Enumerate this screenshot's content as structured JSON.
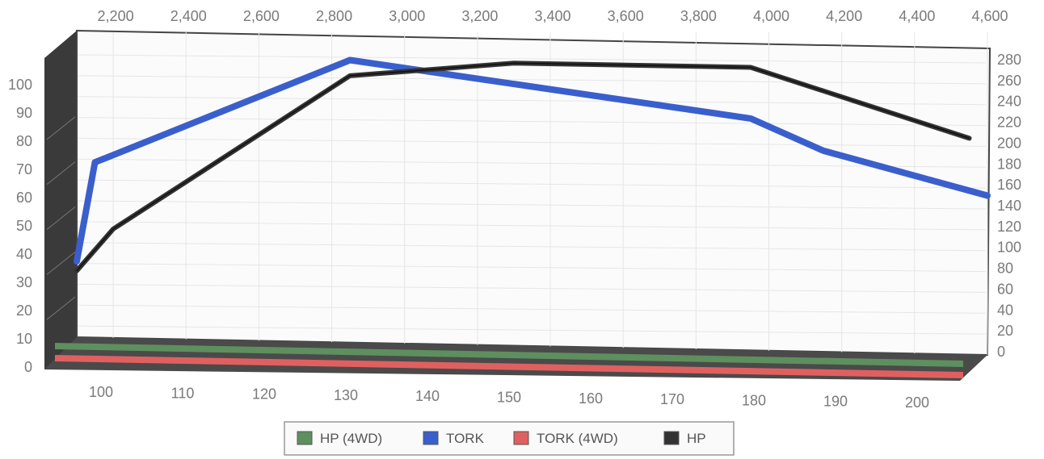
{
  "chart_data": {
    "type": "line",
    "title": "",
    "xlabel": "",
    "ylabel": "",
    "grid": true,
    "legend_position": "bottom-center",
    "top_axis": {
      "ticks": [
        2200,
        2400,
        2600,
        2800,
        3000,
        3200,
        3400,
        3600,
        3800,
        4000,
        4200,
        4400,
        4600
      ],
      "labels": [
        "2,200",
        "2,400",
        "2,600",
        "2,800",
        "3,000",
        "3,200",
        "3,400",
        "3,600",
        "3,800",
        "4,000",
        "4,200",
        "4,400",
        "4,600"
      ]
    },
    "bottom_axis": {
      "range": [
        95,
        205
      ],
      "ticks": [
        100,
        110,
        120,
        130,
        140,
        150,
        160,
        170,
        180,
        190,
        200
      ],
      "labels": [
        "100",
        "110",
        "120",
        "130",
        "140",
        "150",
        "160",
        "170",
        "180",
        "190",
        "200"
      ]
    },
    "left_axis": {
      "range": [
        0,
        100
      ],
      "ticks": [
        0,
        10,
        20,
        30,
        40,
        50,
        60,
        70,
        80,
        90,
        100
      ],
      "labels": [
        "0",
        "10",
        "20",
        "30",
        "40",
        "50",
        "60",
        "70",
        "80",
        "90",
        "100"
      ]
    },
    "right_axis": {
      "range": [
        0,
        280
      ],
      "ticks": [
        0,
        20,
        40,
        60,
        80,
        100,
        120,
        140,
        160,
        180,
        200,
        220,
        240,
        260,
        280
      ],
      "labels": [
        "0",
        "20",
        "40",
        "60",
        "80",
        "100",
        "120",
        "140",
        "160",
        "180",
        "200",
        "220",
        "240",
        "260",
        "280"
      ]
    },
    "series": [
      {
        "name": "HP (4WD)",
        "color": "#5e8f5e",
        "axis": "right",
        "x": [
          2100,
          4600
        ],
        "y": [
          0,
          0
        ]
      },
      {
        "name": "TORK",
        "color": "#3a5fcd",
        "axis": "right",
        "x": [
          2100,
          2150,
          2850,
          3950,
          4150,
          4600
        ],
        "y": [
          82,
          177,
          275,
          219,
          188,
          145
        ]
      },
      {
        "name": "TORK (4WD)",
        "color": "#e06060",
        "axis": "right",
        "x": [
          2100,
          4600
        ],
        "y": [
          0,
          0
        ]
      },
      {
        "name": "HP",
        "color": "#333333",
        "axis": "right",
        "x": [
          2100,
          2200,
          2850,
          3300,
          3950,
          4550
        ],
        "y": [
          73,
          113,
          260,
          272,
          268,
          200
        ]
      }
    ]
  }
}
